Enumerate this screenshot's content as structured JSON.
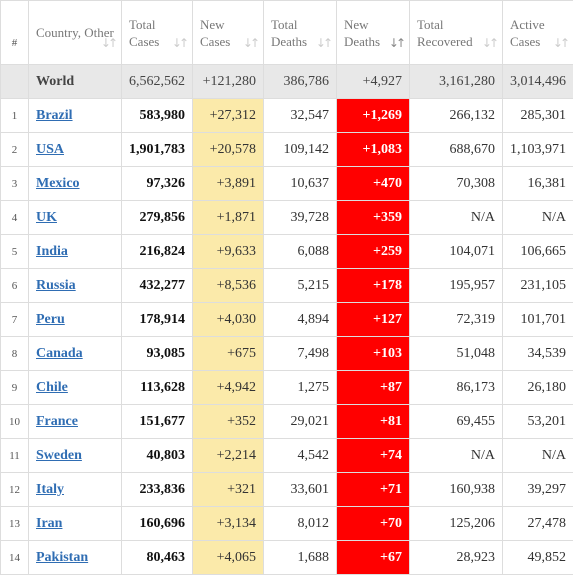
{
  "columns": [
    {
      "key": "rank",
      "label": "#"
    },
    {
      "key": "country",
      "label": "Country, Other"
    },
    {
      "key": "total_cases",
      "label": "Total Cases"
    },
    {
      "key": "new_cases",
      "label": "New Cases"
    },
    {
      "key": "total_deaths",
      "label": "Total Deaths"
    },
    {
      "key": "new_deaths",
      "label": "New Deaths"
    },
    {
      "key": "total_recovered",
      "label": "Total Recovered"
    },
    {
      "key": "active_cases",
      "label": "Active Cases"
    }
  ],
  "sort_glyph": "↓↑",
  "sorted_column": "new_deaths",
  "world": {
    "country": "World",
    "total_cases": "6,562,562",
    "new_cases": "+121,280",
    "total_deaths": "386,786",
    "new_deaths": "+4,927",
    "total_recovered": "3,161,280",
    "active_cases": "3,014,496"
  },
  "rows": [
    {
      "rank": "1",
      "country": "Brazil",
      "total_cases": "583,980",
      "new_cases": "+27,312",
      "total_deaths": "32,547",
      "new_deaths": "+1,269",
      "total_recovered": "266,132",
      "active_cases": "285,301"
    },
    {
      "rank": "2",
      "country": "USA",
      "total_cases": "1,901,783",
      "new_cases": "+20,578",
      "total_deaths": "109,142",
      "new_deaths": "+1,083",
      "total_recovered": "688,670",
      "active_cases": "1,103,971"
    },
    {
      "rank": "3",
      "country": "Mexico",
      "total_cases": "97,326",
      "new_cases": "+3,891",
      "total_deaths": "10,637",
      "new_deaths": "+470",
      "total_recovered": "70,308",
      "active_cases": "16,381"
    },
    {
      "rank": "4",
      "country": "UK",
      "total_cases": "279,856",
      "new_cases": "+1,871",
      "total_deaths": "39,728",
      "new_deaths": "+359",
      "total_recovered": "N/A",
      "active_cases": "N/A"
    },
    {
      "rank": "5",
      "country": "India",
      "total_cases": "216,824",
      "new_cases": "+9,633",
      "total_deaths": "6,088",
      "new_deaths": "+259",
      "total_recovered": "104,071",
      "active_cases": "106,665"
    },
    {
      "rank": "6",
      "country": "Russia",
      "total_cases": "432,277",
      "new_cases": "+8,536",
      "total_deaths": "5,215",
      "new_deaths": "+178",
      "total_recovered": "195,957",
      "active_cases": "231,105"
    },
    {
      "rank": "7",
      "country": "Peru",
      "total_cases": "178,914",
      "new_cases": "+4,030",
      "total_deaths": "4,894",
      "new_deaths": "+127",
      "total_recovered": "72,319",
      "active_cases": "101,701"
    },
    {
      "rank": "8",
      "country": "Canada",
      "total_cases": "93,085",
      "new_cases": "+675",
      "total_deaths": "7,498",
      "new_deaths": "+103",
      "total_recovered": "51,048",
      "active_cases": "34,539"
    },
    {
      "rank": "9",
      "country": "Chile",
      "total_cases": "113,628",
      "new_cases": "+4,942",
      "total_deaths": "1,275",
      "new_deaths": "+87",
      "total_recovered": "86,173",
      "active_cases": "26,180"
    },
    {
      "rank": "10",
      "country": "France",
      "total_cases": "151,677",
      "new_cases": "+352",
      "total_deaths": "29,021",
      "new_deaths": "+81",
      "total_recovered": "69,455",
      "active_cases": "53,201"
    },
    {
      "rank": "11",
      "country": "Sweden",
      "total_cases": "40,803",
      "new_cases": "+2,214",
      "total_deaths": "4,542",
      "new_deaths": "+74",
      "total_recovered": "N/A",
      "active_cases": "N/A"
    },
    {
      "rank": "12",
      "country": "Italy",
      "total_cases": "233,836",
      "new_cases": "+321",
      "total_deaths": "33,601",
      "new_deaths": "+71",
      "total_recovered": "160,938",
      "active_cases": "39,297"
    },
    {
      "rank": "13",
      "country": "Iran",
      "total_cases": "160,696",
      "new_cases": "+3,134",
      "total_deaths": "8,012",
      "new_deaths": "+70",
      "total_recovered": "125,206",
      "active_cases": "27,478"
    },
    {
      "rank": "14",
      "country": "Pakistan",
      "total_cases": "80,463",
      "new_cases": "+4,065",
      "total_deaths": "1,688",
      "new_deaths": "+67",
      "total_recovered": "28,923",
      "active_cases": "49,852"
    }
  ],
  "colors": {
    "new_cases_bg": "#fbeaaa",
    "new_deaths_bg": "#ff0000",
    "world_row_bg": "#e8e8e8",
    "link": "#2f6db3"
  }
}
